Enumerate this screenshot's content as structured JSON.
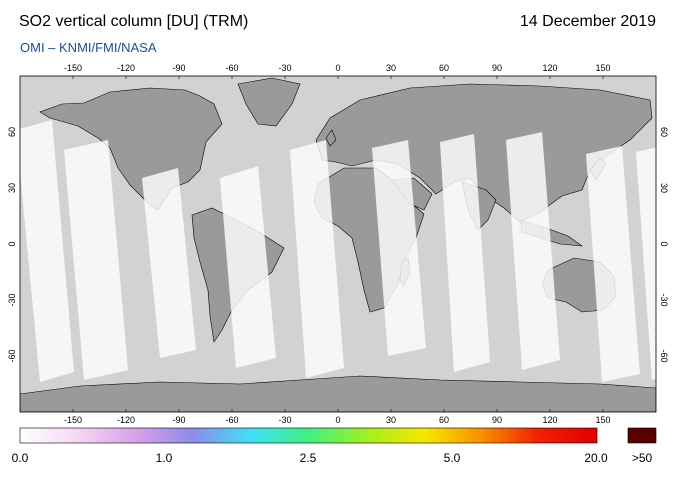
{
  "header": {
    "title": "SO2 vertical column [DU] (TRM)",
    "date": "14 December 2019",
    "credit": "OMI  –  KNMI/FMI/NASA"
  },
  "map": {
    "lon_ticks": [
      "-150",
      "-120",
      "-90",
      "-60",
      "-30",
      "0",
      "30",
      "60",
      "90",
      "120",
      "150"
    ],
    "lat_ticks": [
      "60",
      "30",
      "0",
      "-30",
      "-60"
    ],
    "colors": {
      "ocean": "#d2d2d2",
      "land": "#9a9a9a",
      "swath": "#ffffff",
      "coast": "#000000"
    }
  },
  "colorbar": {
    "labels": [
      "0.0",
      "1.0",
      "2.5",
      "5.0",
      "20.0"
    ],
    "overflow_label": ">50",
    "overflow_color": "#5a0000",
    "gradient_colors": [
      "#ffffff",
      "#f4d8f4",
      "#d8a0e8",
      "#8c8ce8",
      "#40e0f8",
      "#40f080",
      "#a0f020",
      "#f8e800",
      "#f89000",
      "#f02000",
      "#e00000"
    ]
  }
}
